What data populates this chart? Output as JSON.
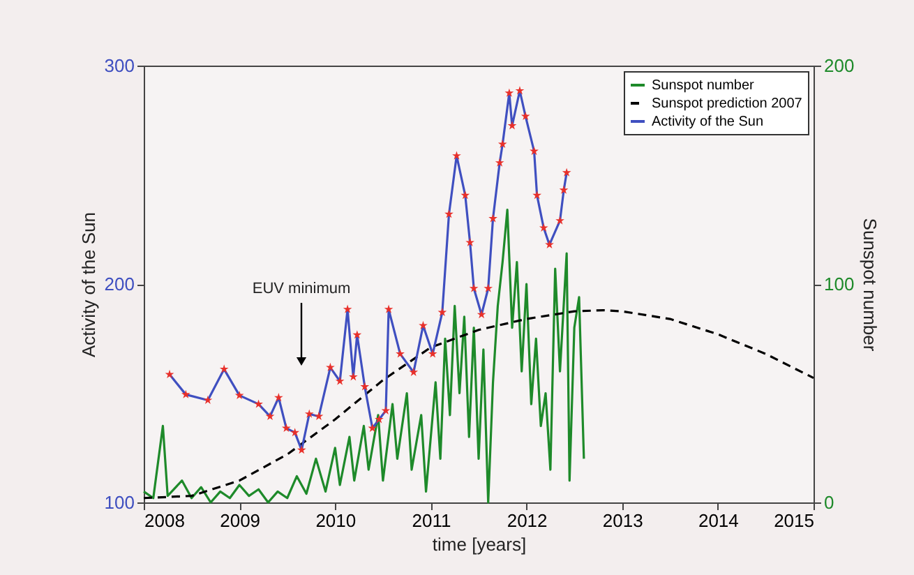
{
  "chart_data": {
    "type": "line",
    "xlabel": "time [years]",
    "ylabel": "Activity of the Sun",
    "y2label": "Sunspot number",
    "xlim": [
      2008,
      2015
    ],
    "xticks": [
      2008,
      2009,
      2010,
      2011,
      2012,
      2013,
      2014,
      2015
    ],
    "ylim": [
      100,
      300
    ],
    "yticks": [
      100,
      200,
      300
    ],
    "y2lim": [
      0,
      200
    ],
    "y2ticks": [
      0,
      100,
      200
    ],
    "legend": "top right",
    "annotations": [
      "EUV minimum"
    ],
    "series": [
      {
        "name": "Sunspot number",
        "color": "#1e8a2a",
        "axis": "y2",
        "line_style": "solid",
        "marker": "none",
        "x": [
          2008.0,
          2008.1,
          2008.2,
          2008.25,
          2008.4,
          2008.5,
          2008.6,
          2008.7,
          2008.8,
          2008.9,
          2009.0,
          2009.1,
          2009.2,
          2009.3,
          2009.4,
          2009.5,
          2009.6,
          2009.7,
          2009.8,
          2009.9,
          2010.0,
          2010.05,
          2010.15,
          2010.2,
          2010.3,
          2010.35,
          2010.45,
          2010.5,
          2010.6,
          2010.65,
          2010.75,
          2010.8,
          2010.9,
          2010.95,
          2011.0,
          2011.05,
          2011.1,
          2011.15,
          2011.2,
          2011.25,
          2011.3,
          2011.35,
          2011.4,
          2011.45,
          2011.5,
          2011.55,
          2011.6,
          2011.65,
          2011.7,
          2011.75,
          2011.8,
          2011.85,
          2011.9,
          2011.95,
          2012.0,
          2012.05,
          2012.1,
          2012.15,
          2012.2,
          2012.25,
          2012.3,
          2012.35,
          2012.42,
          2012.45,
          2012.5,
          2012.55,
          2012.6
        ],
        "values": [
          5,
          2,
          35,
          3,
          10,
          2,
          7,
          0,
          5,
          2,
          8,
          3,
          6,
          0,
          5,
          2,
          12,
          4,
          20,
          5,
          25,
          8,
          30,
          10,
          35,
          15,
          40,
          10,
          45,
          20,
          50,
          15,
          40,
          5,
          30,
          55,
          20,
          75,
          40,
          90,
          50,
          85,
          30,
          80,
          20,
          70,
          0,
          55,
          90,
          110,
          134,
          80,
          110,
          60,
          100,
          45,
          75,
          35,
          50,
          15,
          107,
          60,
          114,
          10,
          80,
          94,
          20
        ]
      },
      {
        "name": "Sunspot prediction 2007",
        "color": "#000000",
        "axis": "y2",
        "line_style": "dashed",
        "marker": "none",
        "x": [
          2008.0,
          2008.5,
          2009.0,
          2009.5,
          2010.0,
          2010.5,
          2011.0,
          2011.5,
          2012.0,
          2012.5,
          2012.8,
          2013.0,
          2013.5,
          2014.0,
          2014.5,
          2015.0
        ],
        "values": [
          2,
          3,
          10,
          22,
          38,
          56,
          71,
          79,
          84,
          87.5,
          88,
          87.5,
          84,
          77,
          68,
          57
        ]
      },
      {
        "name": "Activity of the Sun",
        "color": "#3f4fc0",
        "axis": "y",
        "line_style": "solid",
        "marker": "star",
        "x": [
          2008.27,
          2008.44,
          2008.67,
          2008.84,
          2009.0,
          2009.2,
          2009.32,
          2009.41,
          2009.49,
          2009.58,
          2009.65,
          2009.73,
          2009.83,
          2009.95,
          2010.05,
          2010.13,
          2010.19,
          2010.23,
          2010.31,
          2010.39,
          2010.46,
          2010.53,
          2010.56,
          2010.68,
          2010.82,
          2010.92,
          2011.02,
          2011.12,
          2011.19,
          2011.27,
          2011.36,
          2011.41,
          2011.45,
          2011.53,
          2011.6,
          2011.65,
          2011.72,
          2011.75,
          2011.82,
          2011.85,
          2011.93,
          2011.99,
          2012.08,
          2012.11,
          2012.18,
          2012.24,
          2012.35,
          2012.39,
          2012.42
        ],
        "values": [
          158.6,
          149.4,
          146.8,
          161,
          149,
          145,
          139.4,
          148,
          134,
          132,
          124,
          140.5,
          139.4,
          161.8,
          155.5,
          188.4,
          157.5,
          176.7,
          153,
          134,
          138,
          142,
          188.4,
          168,
          159.6,
          181,
          168,
          187,
          232,
          258.7,
          240.6,
          219,
          198,
          186,
          198,
          230,
          255.5,
          264,
          287.4,
          272.5,
          288.5,
          276.8,
          260.8,
          240.6,
          225.7,
          218,
          229,
          243,
          251
        ]
      }
    ]
  }
}
